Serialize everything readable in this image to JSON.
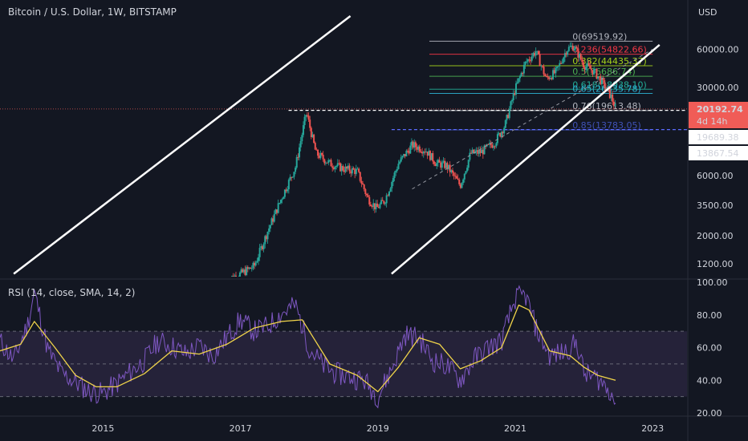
{
  "header": {
    "title": "Bitcoin / U.S. Dollar, 1W, BITSTAMP",
    "currency": "USD"
  },
  "price_badges": {
    "last": "20192.74",
    "countdown": "4d 14h",
    "level_a": "19689.38",
    "level_b": "13867.54"
  },
  "rsi": {
    "label": "RSI (14, close, SMA, 14, 2)"
  },
  "colors": {
    "background": "#131722",
    "rsi_line": "#7e57c2",
    "rsi_ma": "#f0d44a",
    "candle_up": "#26a69a",
    "candle_down": "#ef5350",
    "channel": "#ffffff",
    "rsi_band": "#2a2640"
  },
  "chart_data": [
    {
      "type": "line",
      "subtype": "candlestick",
      "title": "Bitcoin / U.S. Dollar, 1W, BITSTAMP",
      "yscale": "log",
      "ylabel": "USD",
      "ylim": [
        950,
        95000
      ],
      "xlim": [
        2013.5,
        2023.5
      ],
      "y_ticks": [
        "60000.00",
        "30000.00",
        "12000.00",
        "6000.00",
        "3500.00",
        "2000.00",
        "1200.00"
      ],
      "y_tick_values": [
        60000,
        30000,
        12000,
        6000,
        3500,
        2000,
        1200
      ],
      "x_ticks": [
        "2015",
        "2017",
        "2019",
        "2021",
        "2023"
      ],
      "x_tick_values": [
        2015,
        2017,
        2019,
        2021,
        2023
      ],
      "series": [
        {
          "x": [
            2016.8,
            2017.0,
            2017.2,
            2017.4,
            2017.6,
            2017.8,
            2017.96,
            2018.1,
            2018.3,
            2018.5,
            2018.7,
            2018.85,
            2018.98,
            2019.1,
            2019.3,
            2019.5,
            2019.7,
            2019.85,
            2020.0,
            2020.2,
            2020.35,
            2020.5,
            2020.7,
            2020.85,
            2021.0,
            2021.15,
            2021.3,
            2021.45,
            2021.6,
            2021.75,
            2021.85,
            2022.0,
            2022.15,
            2022.3,
            2022.4,
            2022.46
          ],
          "y": [
            900,
            1000,
            1150,
            2200,
            4000,
            7000,
            19000,
            9000,
            7500,
            6800,
            6500,
            4000,
            3300,
            3800,
            7500,
            10500,
            9500,
            7500,
            7200,
            5000,
            9000,
            9200,
            11000,
            15000,
            29000,
            47000,
            58000,
            35000,
            40000,
            60000,
            64000,
            45000,
            40000,
            31000,
            25000,
            20192.74
          ]
        }
      ],
      "channel_lines": [
        {
          "x": [
            2013.7,
            2018.6
          ],
          "y": [
            1000,
            110000
          ]
        },
        {
          "x": [
            2019.2,
            2023.1
          ],
          "y": [
            1000,
            65000
          ]
        }
      ],
      "median_line": {
        "x": [
          2019.5,
          2023.0
        ],
        "y": [
          4700,
          60000
        ]
      },
      "fib_levels": [
        {
          "level": "0",
          "price": 69519.92,
          "text": "0(69519.92)",
          "color": "#b2b5be"
        },
        {
          "level": "0.236",
          "price": 54822.66,
          "text": "0.236(54822.66)",
          "color": "#f23645"
        },
        {
          "level": "0.382",
          "price": 44435.37,
          "text": "0.382(44435.37)",
          "color": "#a5d21a"
        },
        {
          "level": "0.5",
          "price": 36686.74,
          "text": "0.5(36686.74)",
          "color": "#4caf50"
        },
        {
          "level": "0.618",
          "price": 28938.1,
          "text": "0.618(28938.10)",
          "color": "#22ab94"
        },
        {
          "level": "0.65",
          "price": 26835.78,
          "text": "0.65(26835.78)",
          "color": "#2db0d2"
        },
        {
          "level": "0.76",
          "price": 19613.48,
          "text": "0.76(19613.48)",
          "color": "#b2b5be"
        },
        {
          "level": "0.85",
          "price": 13783.05,
          "text": "0.85(13783.05)",
          "color": "#3f51b5"
        }
      ],
      "dashed_levels": [
        {
          "price": 19689.38,
          "x_start": 2017.7
        },
        {
          "price": 13867.54,
          "x_start": 2019.2
        }
      ]
    },
    {
      "type": "line",
      "title": "RSI (14, close, SMA, 14, 2)",
      "ylim": [
        20,
        100
      ],
      "xlim": [
        2013.5,
        2023.5
      ],
      "y_ticks": [
        "100.00",
        "80.00",
        "60.00",
        "40.00",
        "20.00"
      ],
      "y_tick_values": [
        100,
        80,
        60,
        40,
        20
      ],
      "bands": [
        30,
        50,
        70
      ],
      "series": [
        {
          "name": "RSI",
          "x": [
            2013.5,
            2013.7,
            2013.9,
            2014.0,
            2014.2,
            2014.4,
            2014.6,
            2014.8,
            2015.0,
            2015.2,
            2015.4,
            2015.6,
            2015.8,
            2016.0,
            2016.2,
            2016.4,
            2016.6,
            2016.8,
            2017.0,
            2017.2,
            2017.4,
            2017.6,
            2017.8,
            2018.0,
            2018.2,
            2018.4,
            2018.6,
            2018.8,
            2019.0,
            2019.2,
            2019.4,
            2019.6,
            2019.8,
            2020.0,
            2020.2,
            2020.4,
            2020.6,
            2020.8,
            2021.0,
            2021.15,
            2021.3,
            2021.5,
            2021.7,
            2021.9,
            2022.0,
            2022.2,
            2022.4,
            2022.46
          ],
          "y": [
            64,
            52,
            74,
            94,
            58,
            44,
            39,
            33,
            32,
            38,
            45,
            52,
            64,
            61,
            56,
            61,
            55,
            66,
            77,
            70,
            73,
            81,
            86,
            60,
            49,
            44,
            42,
            40,
            30,
            47,
            68,
            66,
            52,
            49,
            40,
            53,
            60,
            64,
            90,
            92,
            72,
            55,
            57,
            63,
            44,
            41,
            33,
            26
          ]
        },
        {
          "name": "RSI-based MA",
          "x": [
            2013.5,
            2013.8,
            2014.0,
            2014.3,
            2014.6,
            2014.9,
            2015.2,
            2015.6,
            2016.0,
            2016.4,
            2016.8,
            2017.2,
            2017.6,
            2017.9,
            2018.3,
            2018.7,
            2019.0,
            2019.3,
            2019.6,
            2019.9,
            2020.2,
            2020.5,
            2020.8,
            2021.05,
            2021.2,
            2021.5,
            2021.8,
            2022.0,
            2022.2,
            2022.46
          ],
          "y": [
            58,
            62,
            76,
            60,
            43,
            36,
            36,
            44,
            58,
            56,
            62,
            72,
            76,
            77,
            50,
            43,
            33,
            48,
            66,
            62,
            47,
            52,
            60,
            86,
            83,
            58,
            55,
            48,
            43,
            40
          ]
        }
      ]
    }
  ]
}
